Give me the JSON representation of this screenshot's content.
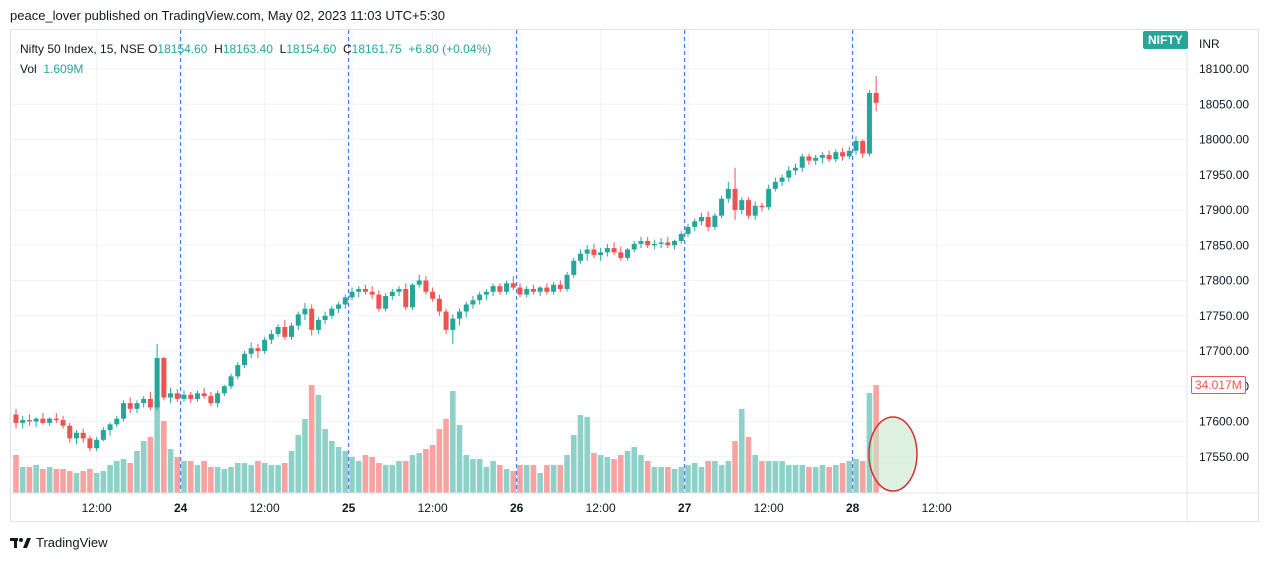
{
  "header": {
    "published_by": "peace_lover published on TradingView.com, May 02, 2023 11:03 UTC+5:30"
  },
  "legend": {
    "symbol": "Nifty 50 Index, 15, NSE",
    "o_label": "O",
    "o_value": "18154.60",
    "h_label": "H",
    "h_value": "18163.40",
    "l_label": "L",
    "l_value": "18154.60",
    "c_label": "C",
    "c_value": "18161.75",
    "change": "+6.80 (+0.04%)",
    "vol_label": "Vol",
    "vol_value": "1.609M"
  },
  "badges": {
    "symbol": "NIFTY",
    "currency": "INR",
    "volume": "34.017M"
  },
  "brand": {
    "name": "TradingView"
  },
  "colors": {
    "up": "#26a69a",
    "down": "#ef5350",
    "vol_up": "#8fd1c8",
    "vol_down": "#f6a3a1",
    "separator": "#2962ff",
    "highlight_fill": "#c8e6c9",
    "highlight_stroke": "#d32f2f"
  },
  "chart_data": {
    "type": "candlestick",
    "price_axis": {
      "min": 17500,
      "max": 18100,
      "ticks": [
        18100,
        18050,
        18000,
        17950,
        17900,
        17850,
        17800,
        17750,
        17700,
        17650,
        17600,
        17550
      ]
    },
    "x_labels": [
      {
        "text": "12:00",
        "bar": 12
      },
      {
        "text": "24",
        "bar": 25
      },
      {
        "text": "12:00",
        "bar": 37
      },
      {
        "text": "25",
        "bar": 50
      },
      {
        "text": "12:00",
        "bar": 62
      },
      {
        "text": "26",
        "bar": 75
      },
      {
        "text": "12:00",
        "bar": 87
      },
      {
        "text": "27",
        "bar": 100
      },
      {
        "text": "12:00",
        "bar": 112
      },
      {
        "text": "28",
        "bar": 125
      },
      {
        "text": "12:00",
        "bar": 137
      }
    ],
    "session_breaks": [
      25,
      50,
      75,
      100,
      125
    ],
    "highlight": {
      "bar_from": 129,
      "bar_to": 132,
      "note": "volume spike circled"
    },
    "candles": [
      [
        17610,
        17618,
        17590,
        17598,
        1.9
      ],
      [
        17598,
        17608,
        17590,
        17602,
        1.3
      ],
      [
        17602,
        17610,
        17594,
        17600,
        1.3
      ],
      [
        17600,
        17606,
        17592,
        17604,
        1.4
      ],
      [
        17604,
        17612,
        17596,
        17598,
        1.2
      ],
      [
        17598,
        17606,
        17594,
        17604,
        1.3
      ],
      [
        17604,
        17612,
        17598,
        17602,
        1.2
      ],
      [
        17602,
        17608,
        17590,
        17594,
        1.2
      ],
      [
        17594,
        17598,
        17570,
        17576,
        1.1
      ],
      [
        17576,
        17588,
        17568,
        17584,
        1.0
      ],
      [
        17584,
        17590,
        17570,
        17576,
        1.1
      ],
      [
        17576,
        17580,
        17558,
        17562,
        1.2
      ],
      [
        17562,
        17578,
        17558,
        17574,
        1.0
      ],
      [
        17574,
        17592,
        17572,
        17588,
        1.1
      ],
      [
        17588,
        17598,
        17580,
        17596,
        1.4
      ],
      [
        17596,
        17608,
        17592,
        17604,
        1.6
      ],
      [
        17604,
        17630,
        17600,
        17626,
        1.7
      ],
      [
        17626,
        17634,
        17612,
        17618,
        1.5
      ],
      [
        17618,
        17630,
        17612,
        17626,
        2.1
      ],
      [
        17626,
        17636,
        17620,
        17632,
        2.6
      ],
      [
        17632,
        17642,
        17616,
        17620,
        2.8
      ],
      [
        17620,
        17710,
        17616,
        17690,
        4.6
      ],
      [
        17690,
        17692,
        17630,
        17634,
        3.6
      ],
      [
        17634,
        17648,
        17626,
        17640,
        2.2
      ],
      [
        17640,
        17646,
        17628,
        17632,
        1.8
      ],
      [
        17632,
        17644,
        17628,
        17638,
        1.6
      ],
      [
        17638,
        17642,
        17626,
        17632,
        1.6
      ],
      [
        17632,
        17644,
        17628,
        17640,
        1.4
      ],
      [
        17640,
        17648,
        17632,
        17636,
        1.6
      ],
      [
        17636,
        17642,
        17622,
        17626,
        1.3
      ],
      [
        17626,
        17644,
        17620,
        17640,
        1.3
      ],
      [
        17640,
        17652,
        17636,
        17650,
        1.2
      ],
      [
        17650,
        17668,
        17646,
        17664,
        1.3
      ],
      [
        17664,
        17684,
        17660,
        17680,
        1.5
      ],
      [
        17680,
        17700,
        17676,
        17696,
        1.5
      ],
      [
        17696,
        17712,
        17690,
        17704,
        1.4
      ],
      [
        17704,
        17710,
        17690,
        17700,
        1.6
      ],
      [
        17700,
        17720,
        17696,
        17716,
        1.5
      ],
      [
        17716,
        17730,
        17710,
        17724,
        1.4
      ],
      [
        17724,
        17738,
        17720,
        17734,
        1.4
      ],
      [
        17734,
        17744,
        17716,
        17720,
        1.5
      ],
      [
        17720,
        17740,
        17716,
        17736,
        2.1
      ],
      [
        17736,
        17756,
        17730,
        17752,
        2.9
      ],
      [
        17752,
        17768,
        17744,
        17760,
        3.7
      ],
      [
        17760,
        17766,
        17722,
        17730,
        5.4
      ],
      [
        17730,
        17748,
        17724,
        17744,
        4.9
      ],
      [
        17744,
        17756,
        17738,
        17750,
        3.2
      ],
      [
        17750,
        17764,
        17746,
        17760,
        2.6
      ],
      [
        17760,
        17770,
        17754,
        17766,
        2.3
      ],
      [
        17766,
        17780,
        17760,
        17776,
        2.1
      ],
      [
        17776,
        17790,
        17772,
        17784,
        1.8
      ],
      [
        17784,
        17792,
        17776,
        17788,
        1.6
      ],
      [
        17788,
        17794,
        17780,
        17784,
        1.9
      ],
      [
        17784,
        17792,
        17774,
        17780,
        1.8
      ],
      [
        17780,
        17786,
        17756,
        17760,
        1.5
      ],
      [
        17760,
        17782,
        17756,
        17778,
        1.4
      ],
      [
        17778,
        17788,
        17772,
        17784,
        1.4
      ],
      [
        17784,
        17792,
        17778,
        17788,
        1.6
      ],
      [
        17788,
        17796,
        17758,
        17762,
        1.6
      ],
      [
        17762,
        17796,
        17758,
        17794,
        1.9
      ],
      [
        17794,
        17808,
        17790,
        17800,
        2.0
      ],
      [
        17800,
        17806,
        17780,
        17784,
        2.2
      ],
      [
        17784,
        17790,
        17770,
        17774,
        2.4
      ],
      [
        17774,
        17780,
        17750,
        17756,
        3.2
      ],
      [
        17756,
        17760,
        17724,
        17730,
        3.7
      ],
      [
        17730,
        17752,
        17710,
        17746,
        5.1
      ],
      [
        17746,
        17760,
        17736,
        17756,
        3.4
      ],
      [
        17756,
        17770,
        17748,
        17766,
        1.9
      ],
      [
        17766,
        17778,
        17760,
        17772,
        1.7
      ],
      [
        17772,
        17784,
        17766,
        17780,
        1.7
      ],
      [
        17780,
        17788,
        17772,
        17784,
        1.3
      ],
      [
        17784,
        17796,
        17778,
        17792,
        1.6
      ],
      [
        17792,
        17796,
        17780,
        17784,
        1.4
      ],
      [
        17784,
        17800,
        17780,
        17796,
        1.2
      ],
      [
        17796,
        17806,
        17786,
        17790,
        1.1
      ],
      [
        17790,
        17796,
        17776,
        17780,
        1.4
      ],
      [
        17780,
        17792,
        17776,
        17788,
        1.4
      ],
      [
        17788,
        17794,
        17780,
        17784,
        1.4
      ],
      [
        17784,
        17792,
        17778,
        17790,
        1.0
      ],
      [
        17790,
        17796,
        17780,
        17784,
        1.4
      ],
      [
        17784,
        17798,
        17780,
        17794,
        1.4
      ],
      [
        17794,
        17800,
        17784,
        17788,
        1.4
      ],
      [
        17788,
        17812,
        17784,
        17808,
        1.9
      ],
      [
        17808,
        17832,
        17804,
        17828,
        2.9
      ],
      [
        17828,
        17844,
        17824,
        17838,
        3.9
      ],
      [
        17838,
        17850,
        17828,
        17844,
        3.8
      ],
      [
        17844,
        17852,
        17832,
        17836,
        2.0
      ],
      [
        17836,
        17846,
        17828,
        17840,
        1.9
      ],
      [
        17840,
        17852,
        17834,
        17846,
        1.8
      ],
      [
        17846,
        17854,
        17836,
        17840,
        1.7
      ],
      [
        17840,
        17848,
        17828,
        17832,
        1.9
      ],
      [
        17832,
        17846,
        17828,
        17844,
        2.1
      ],
      [
        17844,
        17856,
        17840,
        17852,
        2.3
      ],
      [
        17852,
        17862,
        17846,
        17856,
        1.9
      ],
      [
        17856,
        17862,
        17846,
        17850,
        1.6
      ],
      [
        17850,
        17858,
        17844,
        17852,
        1.3
      ],
      [
        17852,
        17860,
        17846,
        17854,
        1.3
      ],
      [
        17854,
        17862,
        17846,
        17850,
        1.3
      ],
      [
        17850,
        17858,
        17844,
        17856,
        1.2
      ],
      [
        17856,
        17870,
        17852,
        17866,
        1.3
      ],
      [
        17866,
        17880,
        17862,
        17876,
        1.4
      ],
      [
        17876,
        17888,
        17870,
        17884,
        1.5
      ],
      [
        17884,
        17896,
        17878,
        17890,
        1.3
      ],
      [
        17890,
        17898,
        17870,
        17876,
        1.6
      ],
      [
        17876,
        17896,
        17872,
        17892,
        1.6
      ],
      [
        17892,
        17920,
        17888,
        17916,
        1.4
      ],
      [
        17916,
        17940,
        17910,
        17930,
        1.6
      ],
      [
        17930,
        17960,
        17886,
        17900,
        2.6
      ],
      [
        17900,
        17918,
        17894,
        17914,
        4.2
      ],
      [
        17914,
        17918,
        17888,
        17892,
        2.8
      ],
      [
        17892,
        17912,
        17886,
        17906,
        1.9
      ],
      [
        17906,
        17910,
        17898,
        17904,
        1.6
      ],
      [
        17904,
        17936,
        17900,
        17930,
        1.6
      ],
      [
        17930,
        17946,
        17926,
        17940,
        1.6
      ],
      [
        17940,
        17950,
        17934,
        17946,
        1.6
      ],
      [
        17946,
        17962,
        17940,
        17956,
        1.4
      ],
      [
        17956,
        17966,
        17950,
        17960,
        1.4
      ],
      [
        17960,
        17980,
        17954,
        17976,
        1.4
      ],
      [
        17976,
        17980,
        17964,
        17970,
        1.3
      ],
      [
        17970,
        17978,
        17964,
        17974,
        1.3
      ],
      [
        17974,
        17982,
        17966,
        17978,
        1.4
      ],
      [
        17978,
        17984,
        17968,
        17972,
        1.3
      ],
      [
        17972,
        17986,
        17968,
        17982,
        1.4
      ],
      [
        17982,
        17988,
        17970,
        17976,
        1.5
      ],
      [
        17976,
        17990,
        17972,
        17984,
        1.6
      ],
      [
        17984,
        18004,
        17978,
        17998,
        1.7
      ],
      [
        17998,
        18000,
        17974,
        17980,
        1.6
      ],
      [
        17980,
        18070,
        17976,
        18066,
        5.0
      ],
      [
        18066,
        18090,
        18040,
        18052,
        5.4
      ]
    ]
  }
}
